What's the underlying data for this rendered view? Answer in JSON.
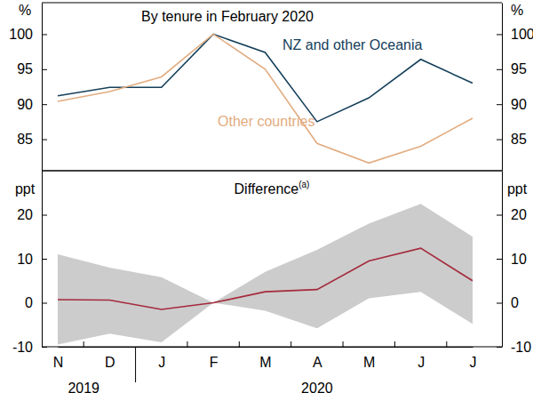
{
  "chart_data": [
    {
      "type": "line",
      "title": "By tenure in February 2020",
      "y_unit": "%",
      "categories": [
        "N",
        "D",
        "J",
        "F",
        "M",
        "A",
        "M",
        "J",
        "J"
      ],
      "tick_labels": "y",
      "ylim": [
        80.5,
        104.5
      ],
      "yticks": [
        85,
        90,
        95,
        100
      ],
      "grid": false,
      "series": [
        {
          "name": "NZ and other Oceania",
          "color": "#15405a",
          "values": [
            91.2,
            92.4,
            92.4,
            100,
            97.4,
            87.5,
            90.9,
            96.4,
            93.0
          ]
        },
        {
          "name": "Other countries",
          "color": "#e2ac80",
          "values": [
            90.4,
            91.8,
            93.9,
            100,
            95.0,
            84.4,
            81.6,
            84.0,
            88.0
          ]
        }
      ]
    },
    {
      "type": "line",
      "title": "Difference",
      "title_note": "(a)",
      "y_unit": "ppt",
      "categories": [
        "N",
        "D",
        "J",
        "F",
        "M",
        "A",
        "M",
        "J",
        "J"
      ],
      "years": [
        "2019",
        "2019",
        "2020",
        "2020",
        "2020",
        "2020",
        "2020",
        "2020",
        "2020"
      ],
      "ylim": [
        -10,
        30
      ],
      "yticks": [
        -10,
        0,
        10,
        20
      ],
      "grid": false,
      "series": [
        {
          "color": "#a52a3c",
          "values": [
            0.7,
            0.6,
            -1.5,
            0,
            2.5,
            3.0,
            9.5,
            12.4,
            5.0
          ]
        }
      ],
      "band": {
        "color": "#cccccc",
        "lower": [
          -9.5,
          -7.0,
          -9.0,
          0,
          -1.8,
          -5.8,
          1.0,
          2.5,
          -4.8
        ],
        "upper": [
          11.0,
          8.0,
          5.8,
          0,
          7.0,
          12.0,
          18.0,
          22.5,
          15.0
        ]
      }
    }
  ]
}
